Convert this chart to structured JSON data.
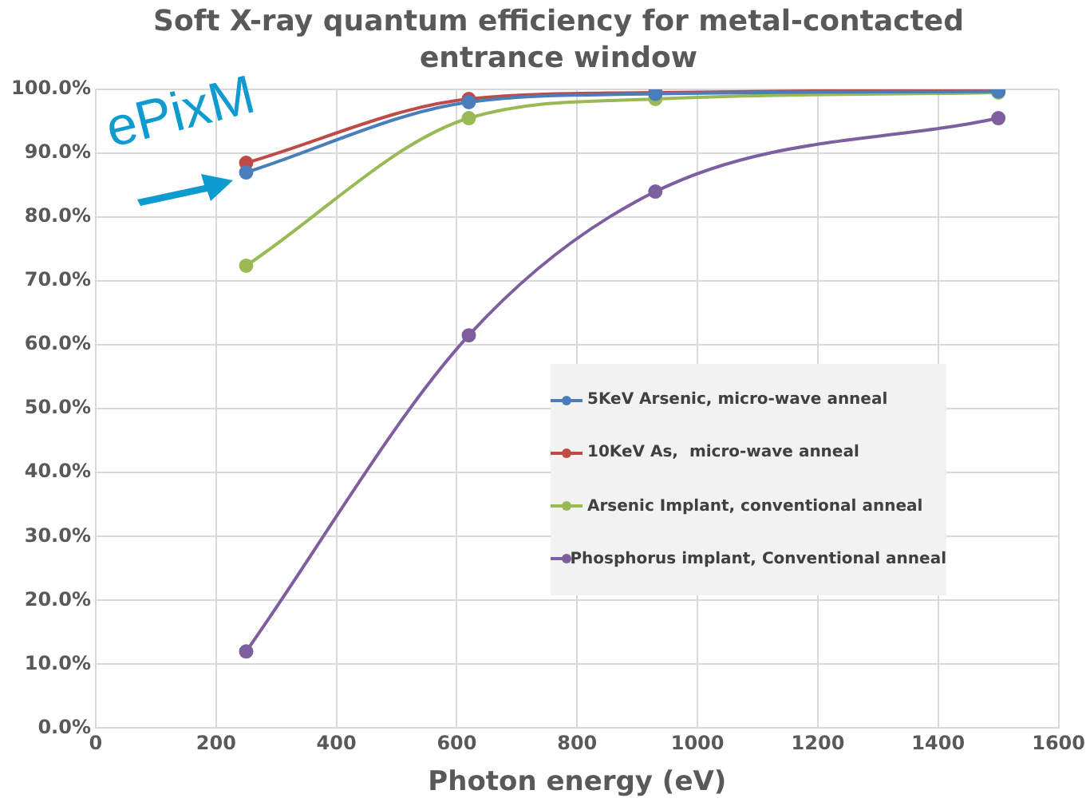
{
  "chart_data": {
    "type": "line",
    "title": "Soft X-ray quantum efficiency for metal-contacted entrance window",
    "xlabel": "Photon energy (eV)",
    "x": [
      250,
      620,
      930,
      1500
    ],
    "series": [
      {
        "name": "5KeV Arsenic, micro-wave anneal",
        "color": "#4a7ebb",
        "values": [
          87.0,
          98.0,
          99.3,
          99.7
        ]
      },
      {
        "name": "10KeV As,  micro-wave anneal",
        "color": "#be4b48",
        "values": [
          88.5,
          98.5,
          99.5,
          100.0
        ]
      },
      {
        "name": "Arsenic Implant, conventional anneal",
        "color": "#98b954",
        "values": [
          72.4,
          95.5,
          98.5,
          99.5
        ]
      },
      {
        "name": "Phosphorus implant, Conventional anneal",
        "color": "#7d5fa0",
        "values": [
          12.0,
          61.5,
          84.0,
          95.5
        ]
      }
    ],
    "xlim": [
      0,
      1600
    ],
    "xticks": [
      0,
      200,
      400,
      600,
      800,
      1000,
      1200,
      1400,
      1600
    ],
    "ylim": [
      0,
      100
    ],
    "yticks": [
      {
        "value": 0,
        "label": "0.0%"
      },
      {
        "value": 10,
        "label": "10.0%"
      },
      {
        "value": 20,
        "label": "20.0%"
      },
      {
        "value": 30,
        "label": "30.0%"
      },
      {
        "value": 40,
        "label": "40.0%"
      },
      {
        "value": 50,
        "label": "50.0%"
      },
      {
        "value": 60,
        "label": "60.0%"
      },
      {
        "value": 70,
        "label": "70.0%"
      },
      {
        "value": 80,
        "label": "80.0%"
      },
      {
        "value": 90,
        "label": "90.0%"
      },
      {
        "value": 100,
        "label": "100.0%"
      }
    ],
    "grid": true,
    "legend": "right",
    "marker": "circle",
    "line_style": "solid",
    "annotations": [
      "ePixM"
    ]
  }
}
